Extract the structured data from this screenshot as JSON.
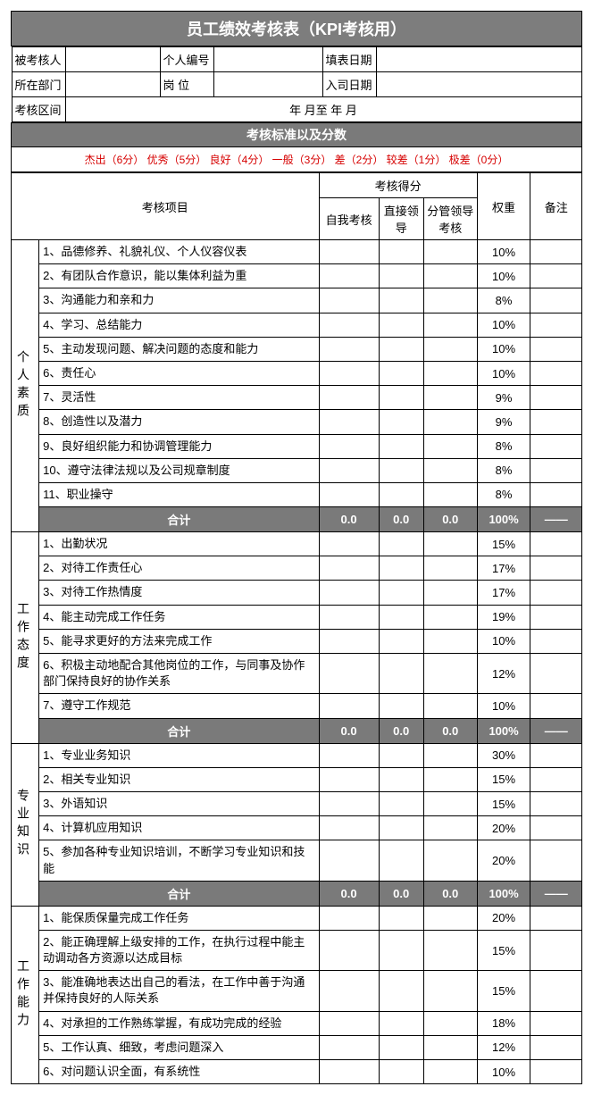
{
  "title": "员工绩效考核表（KPI考核用）",
  "info_labels": {
    "assessee": "被考核人",
    "emp_no": "个人编号",
    "fill_date": "填表日期",
    "dept": "所在部门",
    "position": "岗 位",
    "join_date": "入司日期",
    "period": "考核区间",
    "period_text": "年     月至       年     月"
  },
  "scoring_header": "考核标准以及分数",
  "legend": "杰出（6分） 优秀（5分） 良好（4分） 一般（3分） 差（2分） 较差（1分） 极差（0分）",
  "th": {
    "item": "考核项目",
    "score_group": "考核得分",
    "self": "自我考核",
    "direct": "直接领导",
    "manager": "分管领导考核",
    "weight": "权重",
    "remark": "备注"
  },
  "subtotal_label": "合计",
  "subtotal_values": {
    "self": "0.0",
    "direct": "0.0",
    "manager": "0.0",
    "weight": "100%",
    "remark": "——"
  },
  "sections": [
    {
      "name": "个人素质",
      "items": [
        {
          "t": "1、品德修养、礼貌礼仪、个人仪容仪表",
          "w": "10%"
        },
        {
          "t": "2、有团队合作意识，能以集体利益为重",
          "w": "10%"
        },
        {
          "t": "3、沟通能力和亲和力",
          "w": "8%"
        },
        {
          "t": "4、学习、总结能力",
          "w": "10%"
        },
        {
          "t": "5、主动发现问题、解决问题的态度和能力",
          "w": "10%"
        },
        {
          "t": "6、责任心",
          "w": "10%"
        },
        {
          "t": "7、灵活性",
          "w": "9%"
        },
        {
          "t": "8、创造性以及潜力",
          "w": "9%"
        },
        {
          "t": "9、良好组织能力和协调管理能力",
          "w": "8%"
        },
        {
          "t": "10、遵守法律法规以及公司规章制度",
          "w": "8%"
        },
        {
          "t": "11、职业操守",
          "w": "8%"
        }
      ]
    },
    {
      "name": "工作态度",
      "items": [
        {
          "t": "1、出勤状况",
          "w": "15%"
        },
        {
          "t": "2、对待工作责任心",
          "w": "17%"
        },
        {
          "t": "3、对待工作热情度",
          "w": "17%"
        },
        {
          "t": "4、能主动完成工作任务",
          "w": "19%"
        },
        {
          "t": "5、能寻求更好的方法来完成工作",
          "w": "10%"
        },
        {
          "t": "6、积极主动地配合其他岗位的工作，与同事及协作部门保持良好的协作关系",
          "w": "12%"
        },
        {
          "t": "7、遵守工作规范",
          "w": "10%"
        }
      ]
    },
    {
      "name": "专业知识",
      "items": [
        {
          "t": "1、专业业务知识",
          "w": "30%"
        },
        {
          "t": "2、相关专业知识",
          "w": "15%"
        },
        {
          "t": "3、外语知识",
          "w": "15%"
        },
        {
          "t": "4、计算机应用知识",
          "w": "20%"
        },
        {
          "t": "5、参加各种专业知识培训，不断学习专业知识和技能",
          "w": "20%"
        }
      ]
    },
    {
      "name": "工作能力",
      "no_subtotal": true,
      "items": [
        {
          "t": "1、能保质保量完成工作任务",
          "w": "20%"
        },
        {
          "t": "2、能正确理解上级安排的工作，在执行过程中能主动调动各方资源以达成目标",
          "w": "15%"
        },
        {
          "t": "3、能准确地表达出自己的看法，在工作中善于沟通并保持良好的人际关系",
          "w": "15%"
        },
        {
          "t": "4、对承担的工作熟练掌握，有成功完成的经验",
          "w": "18%"
        },
        {
          "t": "5、工作认真、细致，考虑问题深入",
          "w": "12%"
        },
        {
          "t": "6、对问题认识全面，有系统性",
          "w": "10%"
        }
      ]
    }
  ]
}
